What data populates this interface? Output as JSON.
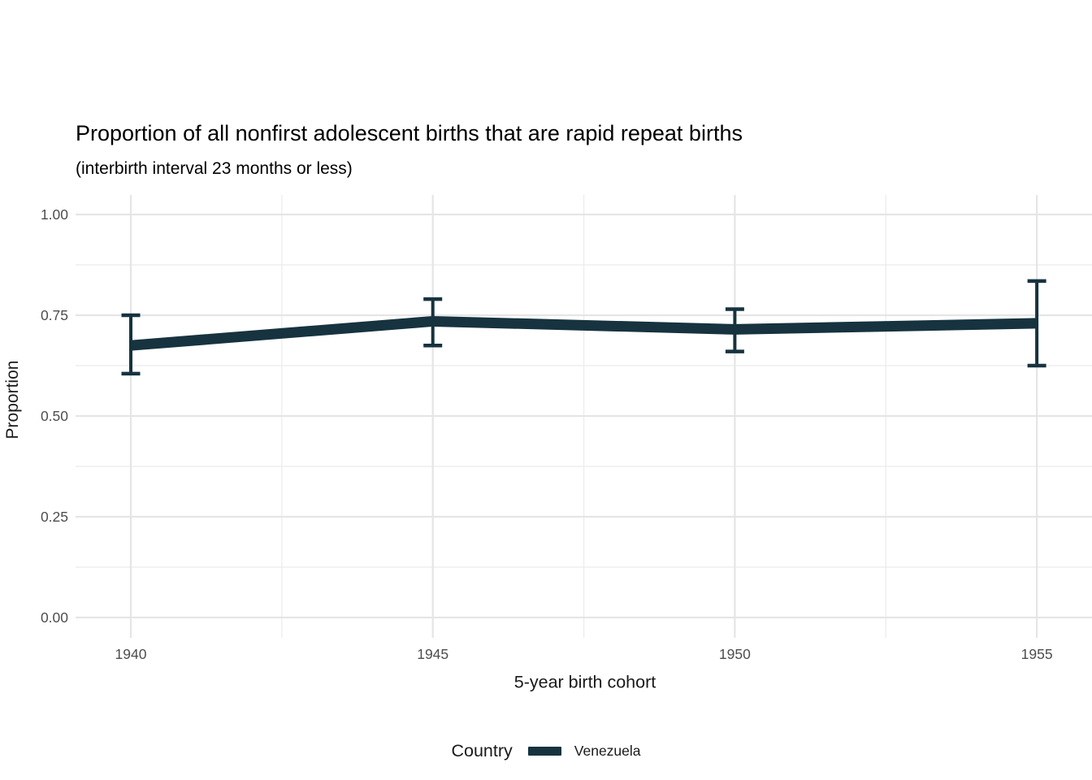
{
  "header": {
    "title": "Proportion of all nonfirst adolescent births that are rapid repeat births",
    "subtitle": "(interbirth interval 23 months or less)"
  },
  "chart_data": {
    "type": "line",
    "title": "Proportion of all nonfirst adolescent births that are rapid repeat births",
    "subtitle": "(interbirth interval 23 months or less)",
    "xlabel": "5-year birth cohort",
    "ylabel": "Proportion",
    "x": [
      1940,
      1945,
      1950,
      1955
    ],
    "x_tick_labels": [
      "1940",
      "1945",
      "1950",
      "1955"
    ],
    "y_ticks": [
      0,
      0.25,
      0.5,
      0.75,
      1.0
    ],
    "y_tick_labels": [
      "0.00",
      "0.25",
      "0.50",
      "0.75",
      "1.00"
    ],
    "ylim": [
      0,
      1
    ],
    "grid": "major+minor",
    "legend": {
      "title": "Country",
      "position": "bottom",
      "entries": [
        {
          "label": "Venezuela",
          "color": "#16333f"
        }
      ]
    },
    "series": [
      {
        "name": "Venezuela",
        "color": "#16333f",
        "values": [
          0.675,
          0.735,
          0.715,
          0.73
        ],
        "ci_lower": [
          0.605,
          0.675,
          0.66,
          0.625
        ],
        "ci_upper": [
          0.75,
          0.79,
          0.765,
          0.835
        ]
      }
    ]
  },
  "colors": {
    "line": "#16333f",
    "grid_major": "#e5e5e5",
    "grid_minor": "#ededed",
    "tick_label": "#4d4d4d",
    "text": "#1a1a1a",
    "background": "#ffffff"
  }
}
